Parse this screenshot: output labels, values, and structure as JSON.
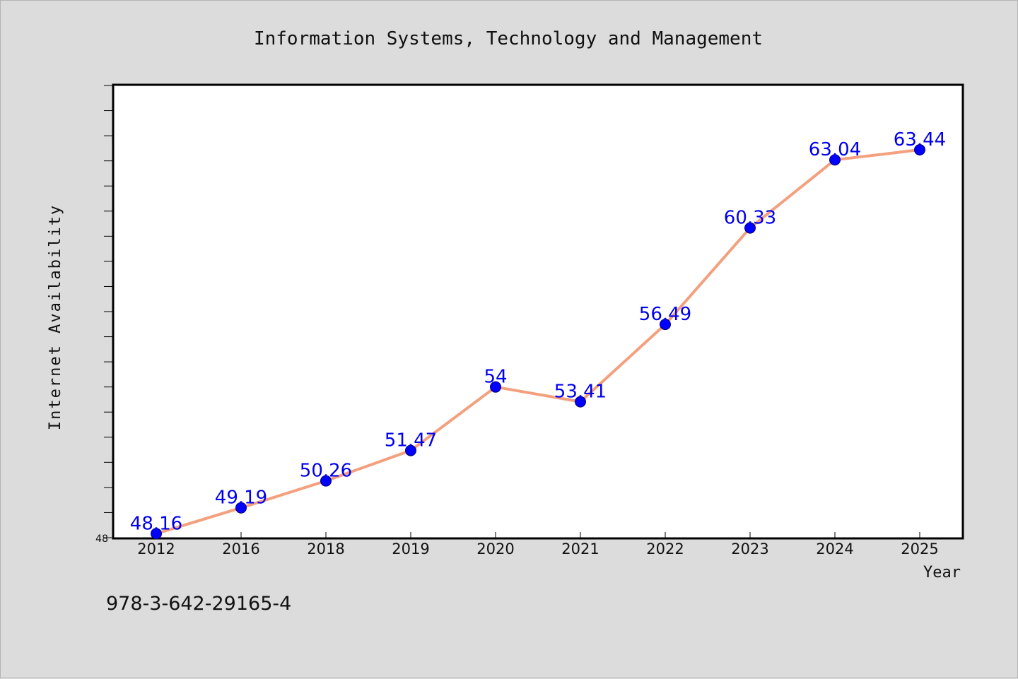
{
  "chart_data": {
    "type": "line",
    "title": "Information Systems, Technology and Management",
    "xlabel": "Year",
    "ylabel": "Internet Availability",
    "categories": [
      "2012",
      "2016",
      "2018",
      "2019",
      "2020",
      "2021",
      "2022",
      "2023",
      "2024",
      "2025"
    ],
    "series": [
      {
        "values": [
          48.16,
          49.19,
          50.26,
          51.47,
          54,
          53.41,
          56.49,
          60.33,
          63.04,
          63.44
        ],
        "labels": [
          "48.16",
          "49.19",
          "50.26",
          "51.47",
          "54",
          "53.41",
          "56.49",
          "60.33",
          "63.04",
          "63.44"
        ]
      }
    ],
    "ylim": [
      48,
      66
    ],
    "yticks_labeled": [
      "48"
    ],
    "grid": false,
    "legend": "none",
    "colors": {
      "line": "#f4a07e",
      "marker": "#0000ff",
      "data_label": "#0000ee",
      "plot_bg": "#ffffff",
      "figure_bg": "#dcdcdc"
    }
  },
  "footer_text": "978-3-642-29165-4"
}
